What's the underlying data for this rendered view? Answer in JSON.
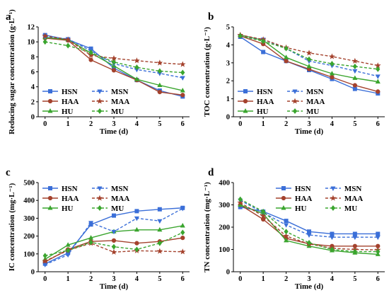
{
  "chart_data": [
    {
      "panel": "a",
      "type": "line",
      "xlabel": "Time (d)",
      "ylabel": "Reducing sugar concentration (g·L⁻¹)",
      "x": [
        0,
        1,
        2,
        3,
        4,
        5,
        6
      ],
      "xlim": [
        -0.3,
        6.3
      ],
      "ylim": [
        0,
        12
      ],
      "yticks": [
        0,
        2,
        4,
        6,
        8,
        10,
        12
      ],
      "legend": "bottom-left",
      "series": [
        {
          "name": "HSN",
          "color": "#3b6fd8",
          "dash": "solid",
          "marker": "square",
          "values": [
            10.9,
            10.3,
            9.1,
            6.5,
            4.9,
            3.5,
            2.7
          ]
        },
        {
          "name": "HAA",
          "color": "#a4422d",
          "dash": "solid",
          "marker": "circle",
          "values": [
            10.5,
            10.2,
            7.6,
            6.2,
            4.9,
            3.3,
            2.9
          ]
        },
        {
          "name": "HU",
          "color": "#3aa52e",
          "dash": "solid",
          "marker": "triangle",
          "values": [
            10.6,
            10.3,
            8.5,
            6.8,
            5.0,
            4.2,
            3.5
          ]
        },
        {
          "name": "MSN",
          "color": "#3b6fd8",
          "dash": "dashed",
          "marker": "triangle-down",
          "values": [
            10.7,
            10.4,
            8.8,
            7.1,
            6.3,
            5.8,
            5.2
          ]
        },
        {
          "name": "MAA",
          "color": "#a4422d",
          "dash": "dashed",
          "marker": "star",
          "values": [
            10.8,
            10.3,
            8.2,
            7.8,
            7.5,
            7.2,
            7.0
          ]
        },
        {
          "name": "MU",
          "color": "#3aa52e",
          "dash": "dashed",
          "marker": "diamond",
          "values": [
            10.0,
            9.5,
            8.6,
            7.3,
            6.6,
            6.1,
            5.9
          ]
        }
      ]
    },
    {
      "panel": "b",
      "type": "line",
      "xlabel": "Time (d)",
      "ylabel": "TOC concentration (g·L⁻¹)",
      "x": [
        0,
        1,
        2,
        3,
        4,
        5,
        6
      ],
      "xlim": [
        -0.3,
        6.3
      ],
      "ylim": [
        0,
        5
      ],
      "yticks": [
        0,
        1,
        2,
        3,
        4,
        5
      ],
      "legend": "bottom-left",
      "series": [
        {
          "name": "HSN",
          "color": "#3b6fd8",
          "dash": "solid",
          "marker": "square",
          "values": [
            4.45,
            3.6,
            3.1,
            2.6,
            2.1,
            1.55,
            1.3
          ]
        },
        {
          "name": "HAA",
          "color": "#a4422d",
          "dash": "solid",
          "marker": "circle",
          "values": [
            4.5,
            4.05,
            3.1,
            2.65,
            2.2,
            1.75,
            1.4
          ]
        },
        {
          "name": "HU",
          "color": "#3aa52e",
          "dash": "solid",
          "marker": "triangle",
          "values": [
            4.55,
            4.25,
            3.3,
            2.8,
            2.4,
            2.15,
            1.95
          ]
        },
        {
          "name": "MSN",
          "color": "#3b6fd8",
          "dash": "dashed",
          "marker": "triangle-down",
          "values": [
            4.5,
            4.3,
            3.8,
            3.1,
            2.85,
            2.55,
            2.25
          ]
        },
        {
          "name": "MAA",
          "color": "#a4422d",
          "dash": "dashed",
          "marker": "star",
          "values": [
            4.55,
            4.3,
            3.85,
            3.55,
            3.35,
            3.1,
            2.85
          ]
        },
        {
          "name": "MU",
          "color": "#3aa52e",
          "dash": "dashed",
          "marker": "diamond",
          "values": [
            4.5,
            4.2,
            3.8,
            3.2,
            2.95,
            2.8,
            2.65
          ]
        }
      ]
    },
    {
      "panel": "c",
      "type": "line",
      "xlabel": "Time (d)",
      "ylabel": "IC concentration (mg·L⁻¹)",
      "x": [
        0,
        1,
        2,
        3,
        4,
        5,
        6
      ],
      "xlim": [
        -0.3,
        6.3
      ],
      "ylim": [
        0,
        500
      ],
      "yticks": [
        0,
        100,
        200,
        300,
        400,
        500
      ],
      "legend": "top-left",
      "series": [
        {
          "name": "HSN",
          "color": "#3b6fd8",
          "dash": "solid",
          "marker": "square",
          "values": [
            45,
            105,
            265,
            315,
            340,
            350,
            358
          ]
        },
        {
          "name": "HAA",
          "color": "#a4422d",
          "dash": "solid",
          "marker": "circle",
          "values": [
            55,
            125,
            170,
            175,
            160,
            170,
            190
          ]
        },
        {
          "name": "HU",
          "color": "#3aa52e",
          "dash": "solid",
          "marker": "triangle",
          "values": [
            70,
            150,
            190,
            225,
            235,
            235,
            258
          ]
        },
        {
          "name": "MSN",
          "color": "#3b6fd8",
          "dash": "dashed",
          "marker": "triangle-down",
          "values": [
            40,
            95,
            275,
            225,
            300,
            285,
            355
          ]
        },
        {
          "name": "MAA",
          "color": "#a4422d",
          "dash": "dashed",
          "marker": "star",
          "values": [
            60,
            120,
            160,
            110,
            118,
            115,
            112
          ]
        },
        {
          "name": "MU",
          "color": "#3aa52e",
          "dash": "dashed",
          "marker": "diamond",
          "values": [
            90,
            120,
            165,
            140,
            125,
            160,
            220
          ]
        }
      ]
    },
    {
      "panel": "d",
      "type": "line",
      "xlabel": "Time (d)",
      "ylabel": "TN concentration (mg·L⁻¹)",
      "x": [
        0,
        1,
        2,
        3,
        4,
        5,
        6
      ],
      "xlim": [
        -0.3,
        6.3
      ],
      "ylim": [
        0,
        400
      ],
      "yticks": [
        0,
        100,
        200,
        300,
        400
      ],
      "legend": "top-right",
      "series": [
        {
          "name": "HSN",
          "color": "#3b6fd8",
          "dash": "solid",
          "marker": "square",
          "values": [
            290,
            270,
            228,
            180,
            170,
            170,
            170
          ]
        },
        {
          "name": "HAA",
          "color": "#a4422d",
          "dash": "solid",
          "marker": "circle",
          "values": [
            300,
            235,
            150,
            125,
            115,
            115,
            115
          ]
        },
        {
          "name": "HU",
          "color": "#3aa52e",
          "dash": "solid",
          "marker": "triangle",
          "values": [
            300,
            260,
            140,
            115,
            95,
            85,
            78
          ]
        },
        {
          "name": "MSN",
          "color": "#3b6fd8",
          "dash": "dashed",
          "marker": "triangle-down",
          "values": [
            320,
            265,
            210,
            165,
            155,
            155,
            155
          ]
        },
        {
          "name": "MAA",
          "color": "#a4422d",
          "dash": "dashed",
          "marker": "star",
          "values": [
            310,
            250,
            160,
            125,
            105,
            100,
            98
          ]
        },
        {
          "name": "MU",
          "color": "#3aa52e",
          "dash": "dashed",
          "marker": "diamond",
          "values": [
            325,
            270,
            180,
            130,
            100,
            90,
            90
          ]
        }
      ]
    }
  ]
}
